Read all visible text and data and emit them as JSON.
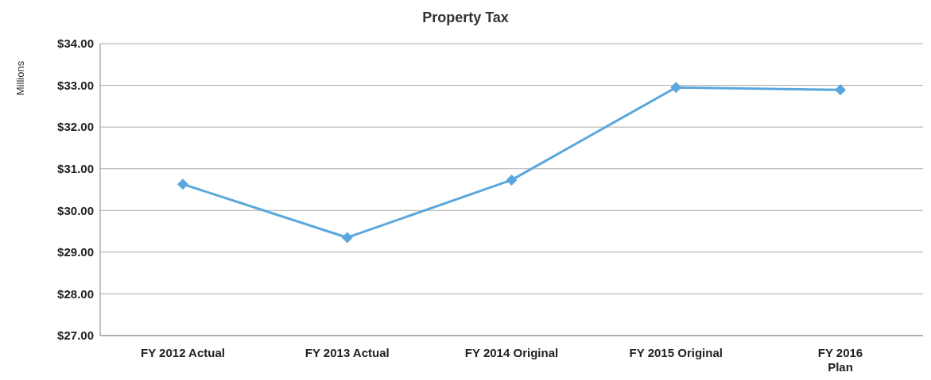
{
  "chart_data": {
    "type": "line",
    "title": "Property Tax",
    "ylabel": "Millions",
    "categories": [
      "FY 2012 Actual",
      "FY 2013 Actual",
      "FY 2014 Original",
      "FY 2015 Original",
      "FY 2016\nPlan"
    ],
    "series": [
      {
        "color": "#5aa7dd",
        "values": [
          30.63,
          29.35,
          30.73,
          32.95,
          32.89
        ]
      }
    ],
    "ylim": [
      27,
      34
    ],
    "yticks": [
      {
        "value": 27,
        "label": "$27.00"
      },
      {
        "value": 28,
        "label": "$28.00"
      },
      {
        "value": 29,
        "label": "$29.00"
      },
      {
        "value": 30,
        "label": "$30.00"
      },
      {
        "value": 31,
        "label": "$31.00"
      },
      {
        "value": 32,
        "label": "$32.00"
      },
      {
        "value": 33,
        "label": "$33.00"
      },
      {
        "value": 34,
        "label": "$34.00"
      }
    ],
    "grid": "y",
    "marker": "diamond",
    "line_style": "solid"
  }
}
